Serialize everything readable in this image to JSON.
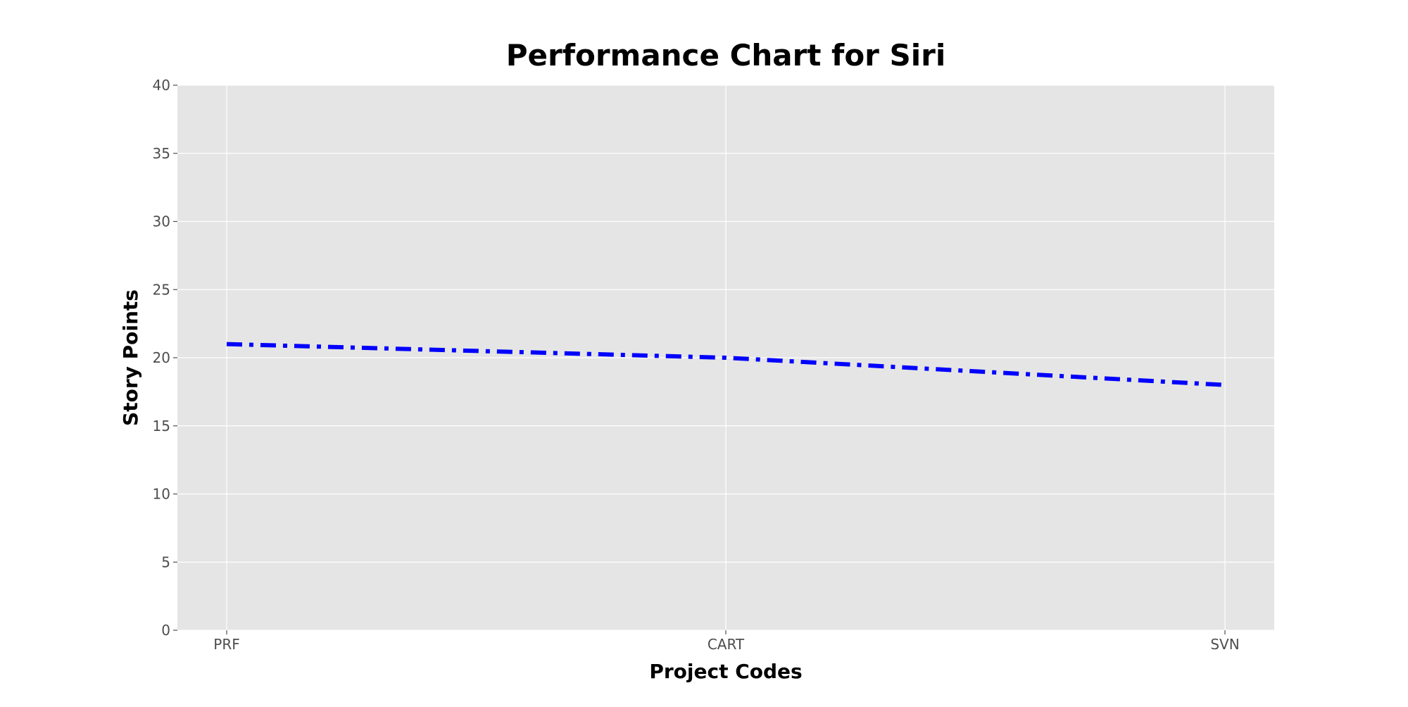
{
  "chart_data": {
    "type": "line",
    "title": "Performance Chart for Siri",
    "xlabel": "Project Codes",
    "ylabel": "Story Points",
    "categories": [
      "PRF",
      "CART",
      "SVN"
    ],
    "series": [
      {
        "values": [
          21,
          20,
          18
        ],
        "color": "#0000ff",
        "line_style": "dash-dot"
      }
    ],
    "ylim": [
      0,
      40
    ],
    "yticks": [
      0,
      5,
      10,
      15,
      20,
      25,
      30,
      35,
      40
    ],
    "grid": true,
    "legend": "none",
    "background_color": "#e5e5e5",
    "grid_color": "#ffffff"
  }
}
